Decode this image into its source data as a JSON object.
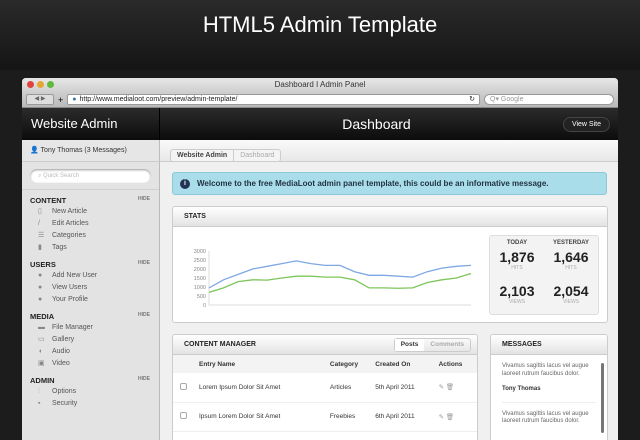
{
  "page_title": "HTML5 Admin Template",
  "browser": {
    "title": "Dashboard I Admin Panel",
    "url": "http://www.medialoot.com/preview/admin-template/",
    "search_placeholder": "Google"
  },
  "header": {
    "site_title": "Website Admin",
    "page": "Dashboard",
    "view_site": "View Site"
  },
  "user": "Tony Thomas (3 Messages)",
  "breadcrumb": [
    "Website Admin",
    "Dashboard"
  ],
  "sidebar": {
    "search_placeholder": "Quick Search",
    "hide": "HIDE",
    "sections": [
      {
        "title": "CONTENT",
        "items": [
          {
            "label": "New Article",
            "icon": "new-article-icon"
          },
          {
            "label": "Edit Articles",
            "icon": "pencil-icon"
          },
          {
            "label": "Categories",
            "icon": "list-icon"
          },
          {
            "label": "Tags",
            "icon": "bookmark-icon"
          }
        ]
      },
      {
        "title": "USERS",
        "items": [
          {
            "label": "Add New User",
            "icon": "add-user-icon"
          },
          {
            "label": "View Users",
            "icon": "users-icon"
          },
          {
            "label": "Your Profile",
            "icon": "user-icon"
          }
        ]
      },
      {
        "title": "MEDIA",
        "items": [
          {
            "label": "File Manager",
            "icon": "folder-icon"
          },
          {
            "label": "Gallery",
            "icon": "gallery-icon"
          },
          {
            "label": "Audio",
            "icon": "audio-icon"
          },
          {
            "label": "Video",
            "icon": "video-icon"
          }
        ]
      },
      {
        "title": "ADMIN",
        "items": [
          {
            "label": "Options",
            "icon": "sliders-icon"
          },
          {
            "label": "Security",
            "icon": "lock-icon"
          }
        ]
      }
    ]
  },
  "info_message": "Welcome to the free MediaLoot admin panel template, this could be an informative message.",
  "stats": {
    "title": "STATS",
    "today_label": "TODAY",
    "yesterday_label": "YESTERDAY",
    "today_hits": "1,876",
    "yesterday_hits": "1,646",
    "today_views": "2,103",
    "yesterday_views": "2,054",
    "hits_label": "HITS",
    "views_label": "VIEWS"
  },
  "chart_data": {
    "type": "line",
    "ylim": [
      0,
      3000
    ],
    "yticks": [
      "3000",
      "2500",
      "2000",
      "1500",
      "1000",
      "500",
      "0"
    ],
    "grid": false,
    "x": [
      1,
      2,
      3,
      4,
      5,
      6,
      7,
      8,
      9,
      10,
      11,
      12,
      13,
      14,
      15,
      16,
      17,
      18,
      19
    ],
    "series": [
      {
        "color": "#7fa7e3",
        "values": [
          950,
          1400,
          1700,
          2000,
          2150,
          2300,
          2450,
          2300,
          2200,
          2200,
          1850,
          1650,
          1650,
          1600,
          1550,
          1850,
          2050,
          2150,
          2200
        ]
      },
      {
        "color": "#7cc65a",
        "values": [
          700,
          950,
          1300,
          1400,
          1380,
          1500,
          1600,
          1600,
          1550,
          1550,
          1400,
          950,
          950,
          930,
          950,
          1250,
          1400,
          1500,
          1750
        ]
      }
    ]
  },
  "content_manager": {
    "title": "CONTENT MANAGER",
    "tabs": [
      "Posts",
      "Comments"
    ],
    "columns": [
      "Entry Name",
      "Category",
      "Created On",
      "Actions"
    ],
    "rows": [
      {
        "name": "Lorem Ipsum Dolor Sit Amet",
        "category": "Articles",
        "date": "5th April 2011"
      },
      {
        "name": "Ipsum Lorem Dolor Sit Amet",
        "category": "Freebies",
        "date": "6th April 2011"
      }
    ]
  },
  "messages": {
    "title": "MESSAGES",
    "items": [
      {
        "text": "Vivamus sagittis lacus vel augue laoreet rutrum faucibus dolor.",
        "author": "Tony Thomas"
      },
      {
        "text": "Vivamus sagittis lacus vel augue laoreet rutrum faucibus dolor."
      }
    ]
  }
}
